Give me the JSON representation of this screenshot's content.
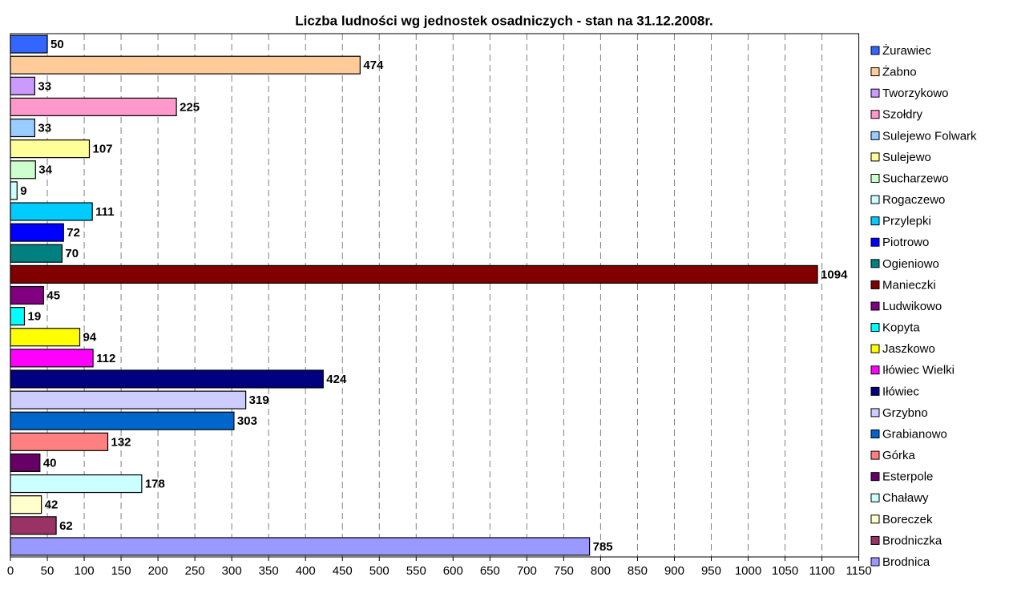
{
  "chart_data": {
    "type": "bar",
    "orientation": "horizontal",
    "title": "Liczba ludności wg jednostek osadniczych - stan na 31.12.2008r.",
    "categories": [
      "Żurawiec",
      "Żabno",
      "Tworzykowo",
      "Szołdry",
      "Sulejewo Folwark",
      "Sulejewo",
      "Sucharzewo",
      "Rogaczewo",
      "Przylepki",
      "Piotrowo",
      "Ogieniowo",
      "Manieczki",
      "Ludwikowo",
      "Kopyta",
      "Jaszkowo",
      "Iłówiec Wielki",
      "Iłówiec",
      "Grzybno",
      "Grabianowo",
      "Górka",
      "Esterpole",
      "Chaławy",
      "Boreczek",
      "Brodniczka",
      "Brodnica"
    ],
    "values": [
      50,
      474,
      33,
      225,
      33,
      107,
      34,
      9,
      111,
      72,
      70,
      1094,
      45,
      19,
      94,
      112,
      424,
      319,
      303,
      132,
      40,
      178,
      42,
      62,
      785
    ],
    "colors": [
      "#3366ff",
      "#ffcc99",
      "#cc99ff",
      "#ff99cc",
      "#99ccff",
      "#ffff99",
      "#ccffcc",
      "#ccffff",
      "#00ccff",
      "#0000ff",
      "#008080",
      "#800000",
      "#800080",
      "#00ffff",
      "#ffff00",
      "#ff00ff",
      "#000080",
      "#ccccff",
      "#0066cc",
      "#ff8080",
      "#660066",
      "#ccffff",
      "#ffffcc",
      "#993366",
      "#9999ff"
    ],
    "xlim": [
      0,
      1150
    ],
    "xticks": [
      0,
      50,
      100,
      150,
      200,
      250,
      300,
      350,
      400,
      450,
      500,
      550,
      600,
      650,
      700,
      750,
      800,
      850,
      900,
      950,
      1000,
      1050,
      1100,
      1150
    ],
    "grid": true,
    "legend": "right"
  }
}
